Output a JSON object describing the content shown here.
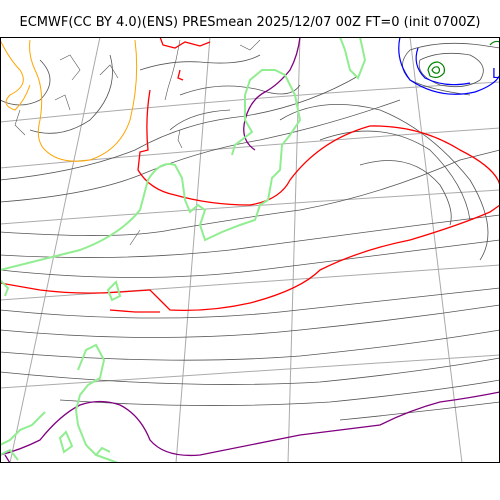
{
  "title": "ECMWF(CC BY 4.0)(ENS) PRESmean 2025/12/07 00Z FT=0 (init 0700Z)",
  "low_center_label": "L",
  "colors": {
    "background": "#ffffff",
    "graticule": "#aaaaaa",
    "isobar": "#555555",
    "coastline": "#90ee90",
    "contour_red": "#ff0000",
    "contour_purple": "#800080",
    "contour_orange": "#ffa500",
    "contour_blue": "#0000ff",
    "contour_green": "#008000"
  }
}
